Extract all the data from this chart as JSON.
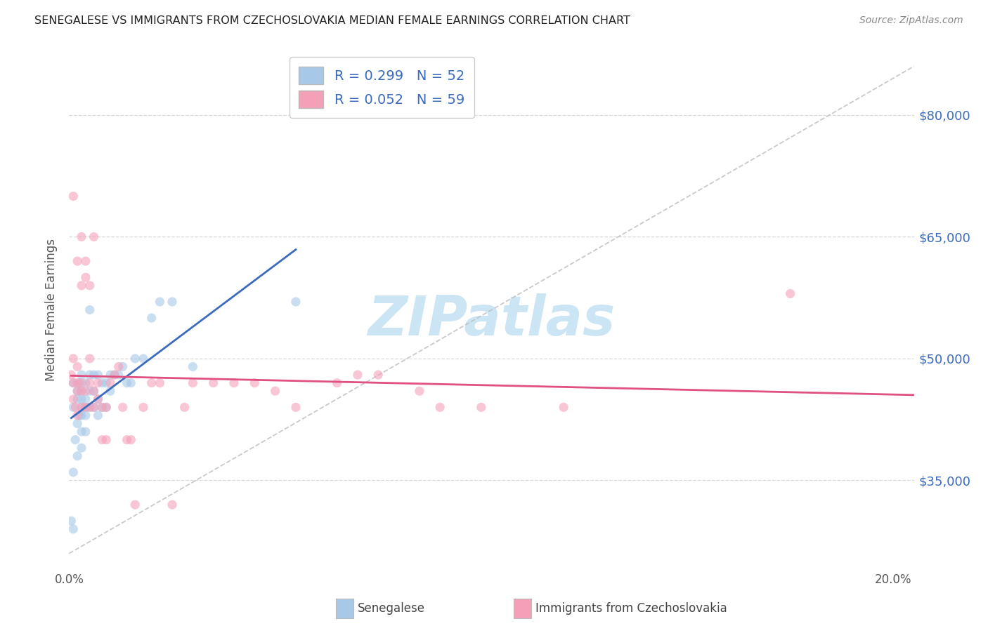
{
  "title": "SENEGALESE VS IMMIGRANTS FROM CZECHOSLOVAKIA MEDIAN FEMALE EARNINGS CORRELATION CHART",
  "source": "Source: ZipAtlas.com",
  "ylabel": "Median Female Earnings",
  "xlim": [
    0.0,
    0.205
  ],
  "ylim": [
    24000,
    88000
  ],
  "y_ticks": [
    35000,
    50000,
    65000,
    80000
  ],
  "y_tick_labels": [
    "$35,000",
    "$50,000",
    "$65,000",
    "$80,000"
  ],
  "x_ticks": [
    0.0,
    0.05,
    0.1,
    0.15,
    0.2
  ],
  "x_tick_labels": [
    "0.0%",
    "",
    "",
    "",
    "20.0%"
  ],
  "blue_dot_color": "#a8c8e8",
  "pink_dot_color": "#f4a0b8",
  "blue_line_color": "#3a6bbf",
  "pink_line_color": "#e05080",
  "diag_line_color": "#c0c0c0",
  "grid_color": "#d5d5d5",
  "dot_size": 90,
  "dot_alpha": 0.6,
  "watermark_text": "ZIPatlas",
  "watermark_color": "#cce5f5",
  "background_color": "#ffffff",
  "legend_label1": "Senegalese",
  "legend_label2": "Immigrants from Czechoslovakia",
  "legend_patch_color1": "#a8c8e8",
  "legend_patch_color2": "#f4a0b8",
  "R_blue": 0.299,
  "N_blue": 52,
  "R_pink": 0.052,
  "N_pink": 59,
  "blue_x": [
    0.0005,
    0.001,
    0.001,
    0.001,
    0.001,
    0.0015,
    0.002,
    0.002,
    0.002,
    0.002,
    0.0025,
    0.0025,
    0.003,
    0.003,
    0.003,
    0.003,
    0.003,
    0.003,
    0.003,
    0.004,
    0.004,
    0.004,
    0.004,
    0.004,
    0.005,
    0.005,
    0.005,
    0.005,
    0.006,
    0.006,
    0.006,
    0.007,
    0.007,
    0.007,
    0.008,
    0.008,
    0.009,
    0.009,
    0.01,
    0.01,
    0.011,
    0.012,
    0.013,
    0.014,
    0.015,
    0.016,
    0.018,
    0.02,
    0.022,
    0.025,
    0.03,
    0.055
  ],
  "blue_y": [
    30000,
    36000,
    44000,
    47000,
    29000,
    40000,
    38000,
    42000,
    45000,
    46000,
    43000,
    47000,
    39000,
    41000,
    44000,
    46000,
    45000,
    48000,
    43000,
    41000,
    43000,
    45000,
    47000,
    44000,
    44000,
    46000,
    48000,
    56000,
    44000,
    46000,
    48000,
    43000,
    45000,
    48000,
    44000,
    47000,
    44000,
    47000,
    46000,
    48000,
    48000,
    48000,
    49000,
    47000,
    47000,
    50000,
    50000,
    55000,
    57000,
    57000,
    49000,
    57000
  ],
  "pink_x": [
    0.0005,
    0.001,
    0.001,
    0.001,
    0.001,
    0.0015,
    0.002,
    0.002,
    0.002,
    0.002,
    0.002,
    0.003,
    0.003,
    0.003,
    0.003,
    0.003,
    0.004,
    0.004,
    0.004,
    0.004,
    0.005,
    0.005,
    0.005,
    0.005,
    0.006,
    0.006,
    0.006,
    0.007,
    0.007,
    0.008,
    0.008,
    0.009,
    0.009,
    0.01,
    0.011,
    0.012,
    0.013,
    0.014,
    0.015,
    0.016,
    0.018,
    0.02,
    0.022,
    0.025,
    0.028,
    0.03,
    0.035,
    0.04,
    0.045,
    0.05,
    0.055,
    0.065,
    0.07,
    0.075,
    0.085,
    0.09,
    0.1,
    0.12,
    0.175
  ],
  "pink_y": [
    48000,
    47000,
    50000,
    70000,
    45000,
    44000,
    43000,
    46000,
    47000,
    62000,
    49000,
    44000,
    46000,
    59000,
    65000,
    47000,
    44000,
    46000,
    60000,
    62000,
    44000,
    47000,
    50000,
    59000,
    44000,
    46000,
    65000,
    45000,
    47000,
    40000,
    44000,
    40000,
    44000,
    47000,
    48000,
    49000,
    44000,
    40000,
    40000,
    32000,
    44000,
    47000,
    47000,
    32000,
    44000,
    47000,
    47000,
    47000,
    47000,
    46000,
    44000,
    47000,
    48000,
    48000,
    46000,
    44000,
    44000,
    44000,
    58000
  ]
}
